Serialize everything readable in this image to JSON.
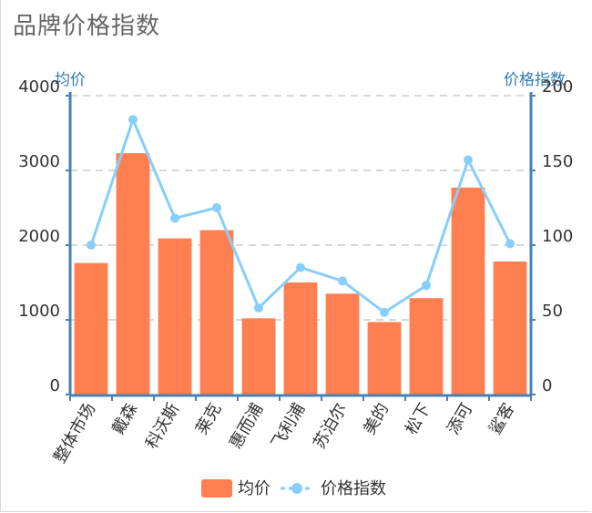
{
  "title": "品牌价格指数",
  "chart_data": {
    "type": "bar",
    "categories": [
      "整体市场",
      "戴森",
      "科沃斯",
      "莱克",
      "惠而浦",
      "飞利浦",
      "苏泊尔",
      "美的",
      "松下",
      "添可",
      "鲨客"
    ],
    "series": [
      {
        "name": "均价",
        "type": "bar",
        "axis": "left",
        "values": [
          1760,
          3230,
          2090,
          2200,
          1020,
          1500,
          1350,
          970,
          1290,
          2770,
          1780
        ]
      },
      {
        "name": "价格指数",
        "type": "line",
        "axis": "right",
        "values": [
          100,
          184,
          118,
          125,
          58,
          85,
          76,
          55,
          73,
          157,
          101
        ]
      }
    ],
    "ylabel_left": "均价",
    "ylabel_right": "价格指数",
    "ylim_left": [
      0,
      4000
    ],
    "ylim_right": [
      0,
      200
    ],
    "yticks_left": [
      "0",
      "1000",
      "2000",
      "3000",
      "4000"
    ],
    "yticks_right": [
      "0",
      "50",
      "100",
      "150",
      "200"
    ],
    "grid": true,
    "legend": "bottom",
    "colors": {
      "bar": "#ff7f50",
      "line": "#87cefa",
      "axis": "#4682b4",
      "grid": "#cccccc"
    }
  }
}
